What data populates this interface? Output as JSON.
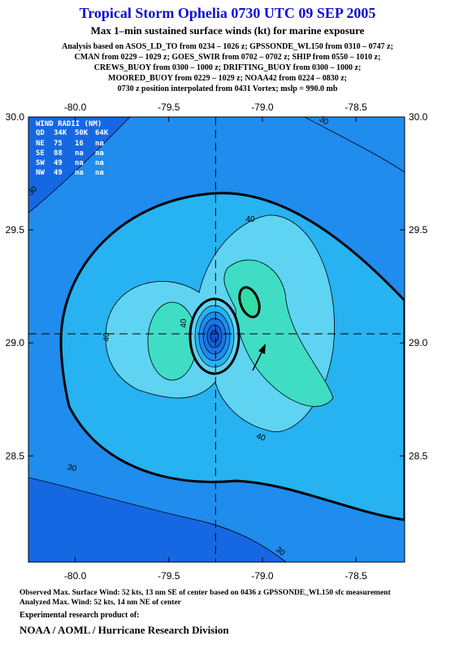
{
  "chart_data": {
    "type": "contour",
    "title": "Tropical Storm Ophelia 0730 UTC 09 SEP 2005",
    "subtitle": "Max 1–min sustained surface winds (kt) for marine exposure",
    "analysis_lines": [
      "Analysis based on  ASOS_LD_TO from 0234 – 1026 z;  GPSSONDE_WL150 from 0310 – 0747 z;",
      "CMAN from 0229 – 1029 z;  GOES_SWIR from 0702 – 0702 z;  SHIP from 0550 – 1010 z;",
      "CREWS_BUOY from 0300 – 1000 z;  DRIFTING_BUOY from 0300 – 1000 z;",
      "MOORED_BUOY from 0229 – 1029 z;  NOAA42 from 0224 – 0830 z;",
      "0730 z position interpolated from 0431 Vortex; mslp = 990.0 mb"
    ],
    "xlim": [
      -80.25,
      -78.24
    ],
    "ylim": [
      28.03,
      30.0
    ],
    "xticks": [
      {
        "value": -80,
        "label": "-80.0"
      },
      -79.5,
      {
        "value": -79,
        "label": "-79.0"
      },
      -78.5
    ],
    "yticks": [
      {
        "value": 30,
        "label": "30.0"
      },
      29.5,
      {
        "value": 29,
        "label": "29.0"
      },
      28.5
    ],
    "center": {
      "lon": -79.25,
      "lat": 29.04
    },
    "contour_labels": [
      30,
      30,
      30,
      30,
      40,
      40,
      40,
      40
    ],
    "wind_radii": {
      "title": "WIND RADII (NM)",
      "columns": [
        "QD",
        "34K",
        "50K",
        "64K"
      ],
      "rows": [
        [
          "NE",
          75,
          16,
          "na"
        ],
        [
          "SE",
          88,
          "na",
          "na"
        ],
        [
          "SW",
          49,
          "na",
          "na"
        ],
        [
          "NW",
          49,
          "na",
          "na"
        ]
      ]
    }
  },
  "footer": [
    "Observed Max. Surface Wind: 52 kts, 13 nm SE of center based on 0436 z GPSSONDE_WL150 sfc measurement",
    "Analyzed Max. Wind: 52 kts, 14 nm NE of center",
    "Experimental research product of:",
    "NOAA / AOML / Hurricane Research Division"
  ]
}
